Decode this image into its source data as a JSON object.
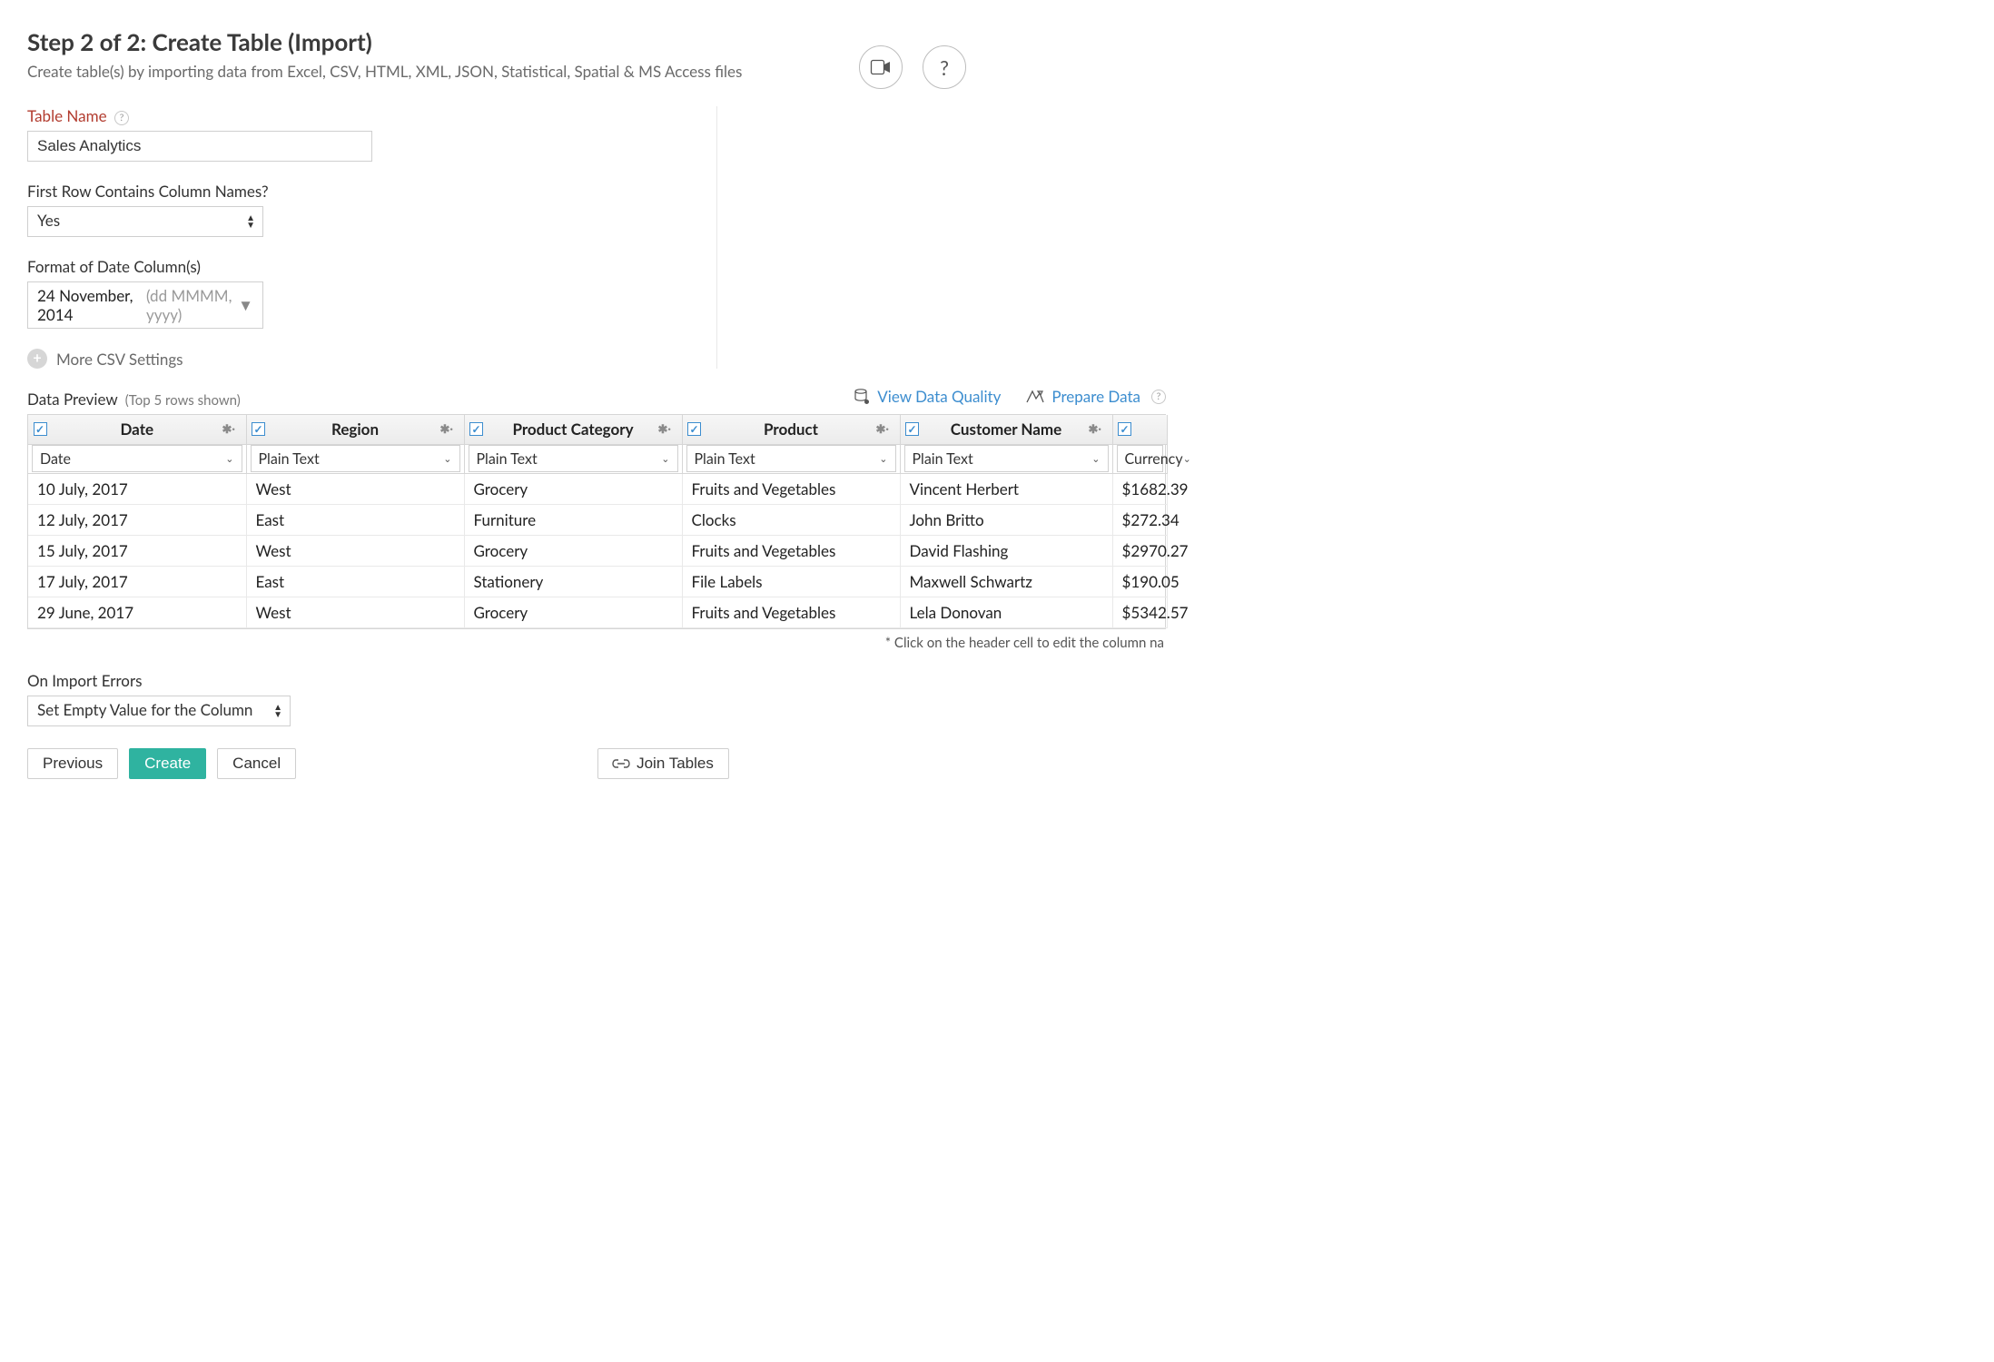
{
  "header": {
    "title": "Step 2 of 2: Create Table (Import)",
    "subtitle": "Create table(s) by importing data from Excel, CSV, HTML, XML, JSON, Statistical, Spatial & MS Access files"
  },
  "form": {
    "table_name_label": "Table Name",
    "table_name_value": "Sales Analytics",
    "first_row_label": "First Row Contains Column Names?",
    "first_row_value": "Yes",
    "date_format_label": "Format of Date Column(s)",
    "date_format_example": "24 November, 2014",
    "date_format_hint": "(dd MMMM, yyyy)",
    "more_csv": "More CSV Settings"
  },
  "preview": {
    "title": "Data Preview",
    "note": "(Top 5 rows shown)",
    "view_dq": "View Data Quality",
    "prepare": "Prepare Data"
  },
  "columns": [
    {
      "name": "Date",
      "type": "Date"
    },
    {
      "name": "Region",
      "type": "Plain Text"
    },
    {
      "name": "Product Category",
      "type": "Plain Text"
    },
    {
      "name": "Product",
      "type": "Plain Text"
    },
    {
      "name": "Customer Name",
      "type": "Plain Text"
    },
    {
      "name": "",
      "type": "Currency"
    }
  ],
  "rows": [
    [
      "10 July, 2017",
      "West",
      "Grocery",
      "Fruits and Vegetables",
      "Vincent Herbert",
      "$1682.39"
    ],
    [
      "12 July, 2017",
      "East",
      "Furniture",
      "Clocks",
      "John Britto",
      "$272.34"
    ],
    [
      "15 July, 2017",
      "West",
      "Grocery",
      "Fruits and Vegetables",
      "David Flashing",
      "$2970.27"
    ],
    [
      "17 July, 2017",
      "East",
      "Stationery",
      "File Labels",
      "Maxwell Schwartz",
      "$190.05"
    ],
    [
      "29 June, 2017",
      "West",
      "Grocery",
      "Fruits and Vegetables",
      "Lela Donovan",
      "$5342.57"
    ]
  ],
  "footnote": "* Click on the header cell to edit the column na",
  "errors": {
    "label": "On Import Errors",
    "value": "Set Empty Value for the Column"
  },
  "actions": {
    "previous": "Previous",
    "create": "Create",
    "cancel": "Cancel",
    "join": "Join Tables"
  },
  "colors": {
    "primary_button": "#2fb3a0",
    "link": "#3c8dcf",
    "label_red": "#b23b2e"
  }
}
